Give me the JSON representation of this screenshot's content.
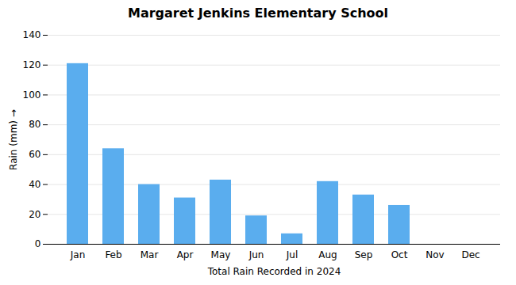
{
  "chart_data": {
    "type": "bar",
    "title": "Margaret Jenkins Elementary School",
    "xlabel": "Total Rain Recorded in 2024",
    "ylabel": "Rain (mm)",
    "categories": [
      "Jan",
      "Feb",
      "Mar",
      "Apr",
      "May",
      "Jun",
      "Jul",
      "Aug",
      "Sep",
      "Oct",
      "Nov",
      "Dec"
    ],
    "values": [
      121,
      64,
      40,
      31,
      43,
      19,
      7,
      42,
      33,
      26,
      0,
      0
    ],
    "color": "#5aadee",
    "ylim": [
      0,
      140
    ],
    "yticks": [
      0,
      20,
      40,
      60,
      80,
      100,
      120,
      140
    ],
    "grid": true
  }
}
